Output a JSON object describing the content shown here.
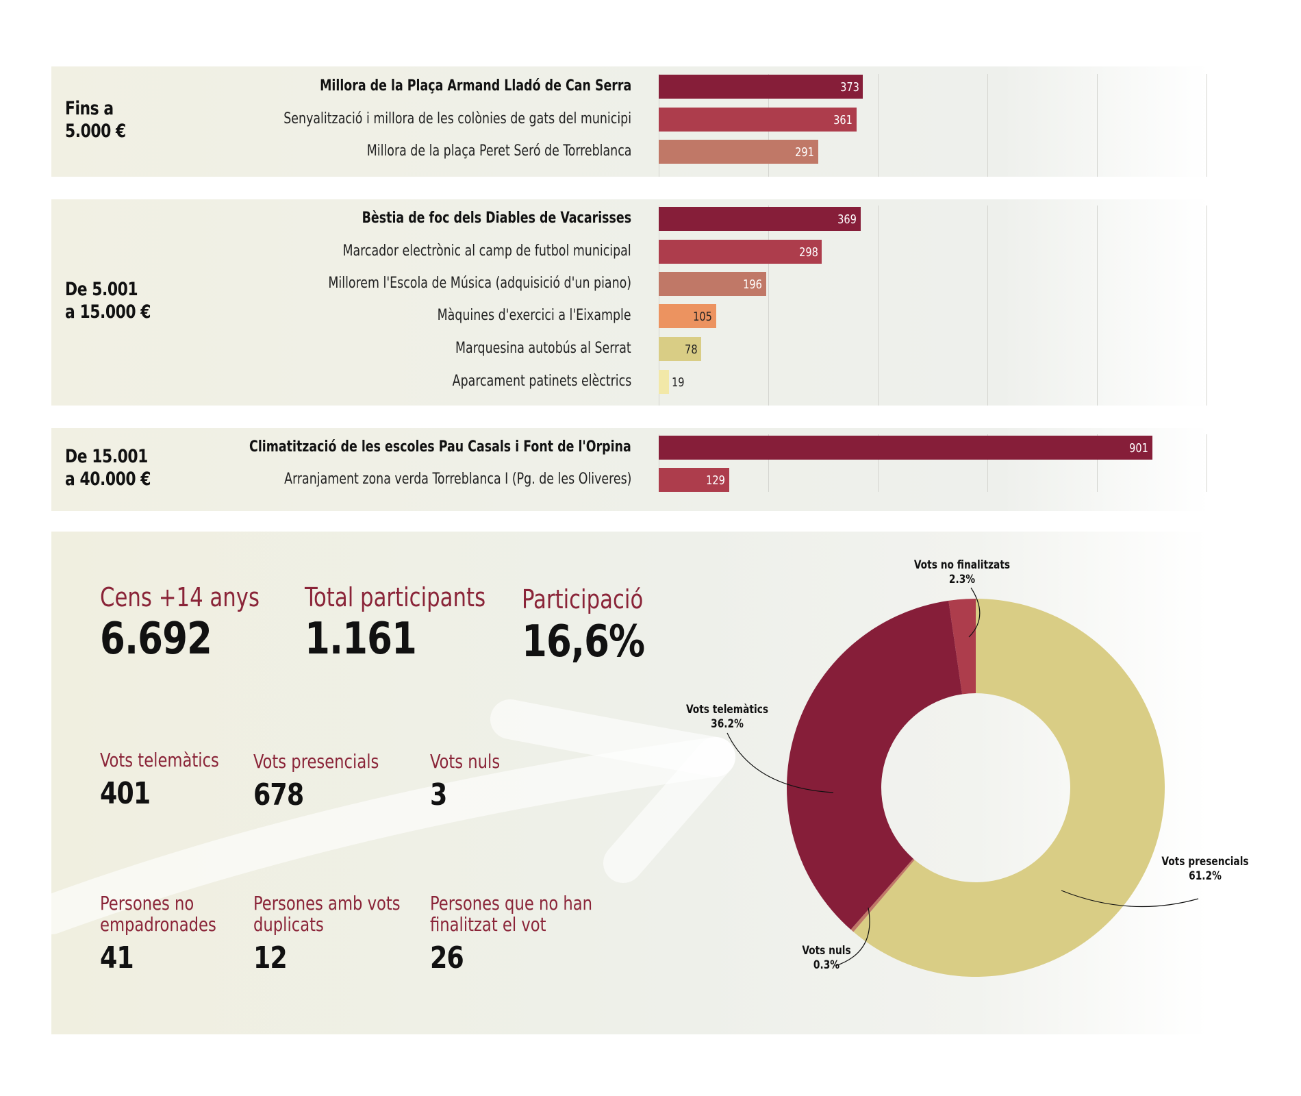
{
  "chart_data": [
    {
      "type": "bar",
      "orientation": "horizontal",
      "xlim": [
        0,
        1000
      ],
      "grid": true,
      "groups": [
        {
          "label": "Fins a\n5.000 €",
          "items": [
            {
              "name": "Millora de la Plaça Armand Lladó de Can Serra",
              "value": 373,
              "winner": true,
              "color": "#861e39"
            },
            {
              "name": "Senyalització i millora de les colònies de gats del municipi",
              "value": 361,
              "winner": false,
              "color": "#ad3d4c"
            },
            {
              "name": "Millora de la plaça Peret Seró de Torreblanca",
              "value": 291,
              "winner": false,
              "color": "#c07867"
            }
          ]
        },
        {
          "label": "De 5.001\na 15.000 €",
          "items": [
            {
              "name": "Bèstia de foc dels Diables de Vacarisses",
              "value": 369,
              "winner": true,
              "color": "#861e39"
            },
            {
              "name": "Marcador electrònic al camp de futbol municipal",
              "value": 298,
              "winner": false,
              "color": "#ad3d4c"
            },
            {
              "name": "Millorem l'Escola de Música (adquisició d'un piano)",
              "value": 196,
              "winner": false,
              "color": "#c07867"
            },
            {
              "name": "Màquines d'exercici a l'Eixample",
              "value": 105,
              "winner": false,
              "color": "#ec9360"
            },
            {
              "name": "Marquesina autobús al Serrat",
              "value": 78,
              "winner": false,
              "color": "#d9cd85"
            },
            {
              "name": "Aparcament patinets elèctrics",
              "value": 19,
              "winner": false,
              "color": "#f2e8a8"
            }
          ]
        },
        {
          "label": "De 15.001\na 40.000 €",
          "items": [
            {
              "name": "Climatització de les escoles Pau Casals i Font de l'Orpina",
              "value": 901,
              "winner": true,
              "color": "#861e39"
            },
            {
              "name": "Arranjament zona verda Torreblanca I (Pg. de les Oliveres)",
              "value": 129,
              "winner": false,
              "color": "#ad3d4c"
            }
          ]
        }
      ]
    },
    {
      "type": "pie",
      "donut": true,
      "slices": [
        {
          "label": "Vots no finalitzats",
          "value": 2.3,
          "display": "2.3%",
          "color": "#ad3d4c"
        },
        {
          "label": "Vots presencials",
          "value": 61.2,
          "display": "61.2%",
          "color": "#d9cd85"
        },
        {
          "label": "Vots nuls",
          "value": 0.3,
          "display": "0.3%",
          "color": "#c07867"
        },
        {
          "label": "Vots telemàtics",
          "value": 36.2,
          "display": "36.2%",
          "color": "#861e39"
        }
      ]
    }
  ],
  "stats": {
    "cens": {
      "label": "Cens +14 anys",
      "value": "6.692"
    },
    "participants": {
      "label": "Total participants",
      "value": "1.161"
    },
    "participacio": {
      "label": "Participació",
      "value": "16,6%"
    },
    "telematics": {
      "label": "Vots telemàtics",
      "value": "401"
    },
    "presencials": {
      "label": "Vots presencials",
      "value": "678"
    },
    "nuls": {
      "label": "Vots nuls",
      "value": "3"
    },
    "no_empadronades": {
      "label": "Persones no\nempadronades",
      "value": "41"
    },
    "duplicats": {
      "label": "Persones amb vots\nduplicats",
      "value": "12"
    },
    "no_finalitzat": {
      "label": "Persones que no han\nfinalitzat el vot",
      "value": "26"
    }
  }
}
